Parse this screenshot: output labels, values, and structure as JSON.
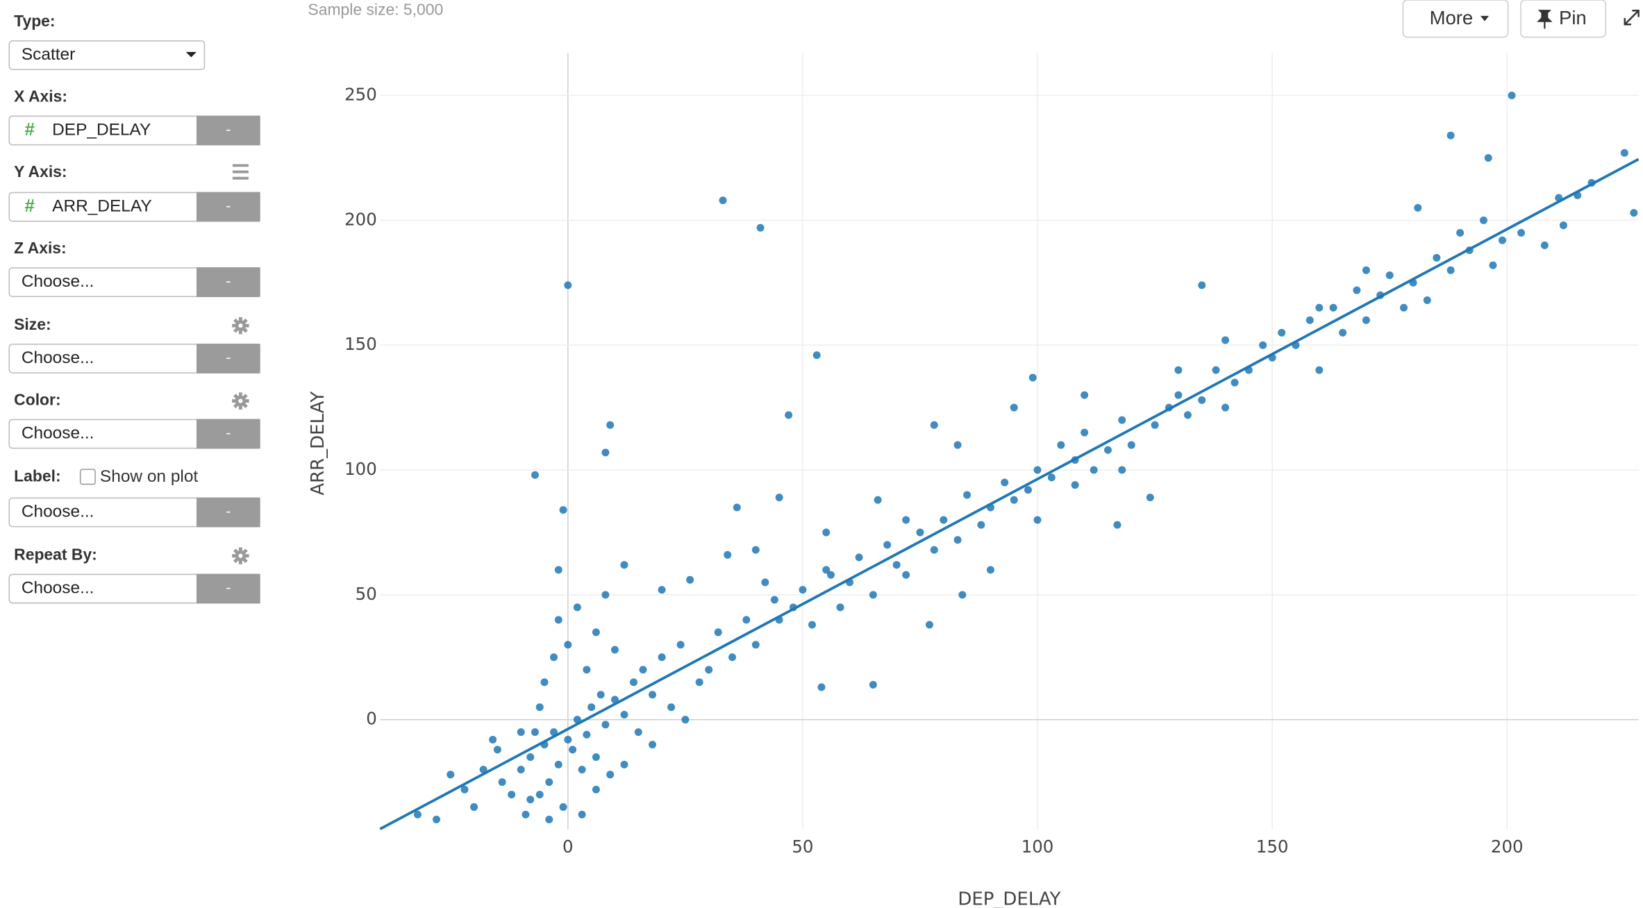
{
  "header": {
    "sample_size": "Sample size: 5,000",
    "more": "More",
    "pin": "Pin"
  },
  "sidebar": {
    "type": {
      "label": "Type:",
      "value": "Scatter"
    },
    "fields": [
      {
        "label": "X Axis:",
        "icon": "#",
        "value": "DEP_DELAY",
        "button": "-"
      },
      {
        "label": "Y Axis:",
        "icon": "#",
        "value": "ARR_DELAY",
        "button": "-"
      },
      {
        "label": "Z Axis:",
        "value": "Choose...",
        "button": "-"
      },
      {
        "label": "Size:",
        "value": "Choose...",
        "button": "-"
      },
      {
        "label": "Color:",
        "value": "Choose...",
        "button": "-"
      },
      {
        "label": "Label:",
        "checkbox": "Show on plot",
        "value": "Choose...",
        "button": "-"
      },
      {
        "label": "Repeat By:",
        "value": "Choose...",
        "button": "-"
      }
    ]
  },
  "chart_data": {
    "type": "scatter",
    "x_label": "DEP_DELAY",
    "y_label": "ARR_DELAY",
    "xlim": [
      -40,
      228
    ],
    "ylim": [
      -44,
      267
    ],
    "xticks": [
      0,
      50,
      100,
      150,
      200
    ],
    "yticks": [
      0,
      50,
      100,
      150,
      200,
      250
    ],
    "grid": true,
    "color": "#1f77b4",
    "x": [
      0,
      33,
      41,
      53,
      47,
      -7,
      9,
      8,
      -1,
      201,
      188,
      196,
      225,
      227,
      211,
      181,
      135,
      124,
      117,
      77,
      65,
      54,
      108,
      -10,
      -8,
      -6,
      -5,
      -4,
      -3,
      -2,
      -1,
      0,
      1,
      2,
      3,
      4,
      5,
      6,
      7,
      8,
      9,
      10,
      12,
      14,
      15,
      16,
      18,
      20,
      22,
      24,
      -12,
      -14,
      -9,
      -7,
      -5,
      -3,
      -2,
      0,
      2,
      4,
      6,
      8,
      10,
      -6,
      -4,
      -8,
      -10,
      -15,
      -18,
      -22,
      -25,
      -28,
      -32,
      -20,
      -16,
      3,
      6,
      12,
      18,
      25,
      28,
      30,
      32,
      35,
      38,
      40,
      42,
      45,
      48,
      50,
      52,
      55,
      58,
      60,
      62,
      65,
      68,
      70,
      72,
      75,
      78,
      80,
      83,
      85,
      88,
      90,
      93,
      95,
      98,
      100,
      103,
      105,
      108,
      110,
      112,
      115,
      118,
      120,
      125,
      128,
      130,
      132,
      135,
      138,
      140,
      142,
      145,
      148,
      150,
      152,
      155,
      158,
      160,
      163,
      165,
      168,
      170,
      173,
      175,
      178,
      180,
      183,
      185,
      188,
      190,
      192,
      195,
      197,
      199,
      203,
      208,
      212,
      215,
      218,
      34,
      44,
      56,
      12,
      20,
      26,
      -2,
      36,
      45,
      66,
      78,
      83,
      95,
      99,
      110,
      130,
      140,
      160,
      170,
      40,
      55,
      72,
      84,
      90,
      100,
      118
    ],
    "values": [
      174,
      208,
      197,
      146,
      122,
      98,
      118,
      107,
      84,
      250,
      234,
      225,
      227,
      203,
      209,
      205,
      174,
      89,
      78,
      38,
      14,
      13,
      94,
      -20,
      -15,
      -30,
      -10,
      -25,
      -5,
      -18,
      -35,
      -8,
      -12,
      0,
      -20,
      -6,
      5,
      -15,
      10,
      -2,
      -22,
      8,
      2,
      15,
      -5,
      20,
      10,
      25,
      5,
      30,
      -30,
      -25,
      -38,
      -5,
      15,
      25,
      40,
      30,
      45,
      20,
      35,
      50,
      28,
      5,
      -40,
      -32,
      -5,
      -12,
      -20,
      -28,
      -22,
      -40,
      -38,
      -35,
      -8,
      -38,
      -28,
      -18,
      -10,
      0,
      15,
      20,
      35,
      25,
      40,
      30,
      55,
      40,
      45,
      52,
      38,
      60,
      45,
      55,
      65,
      50,
      70,
      62,
      58,
      75,
      68,
      80,
      72,
      90,
      78,
      85,
      95,
      88,
      92,
      100,
      97,
      110,
      104,
      115,
      100,
      108,
      120,
      110,
      118,
      125,
      130,
      122,
      128,
      140,
      125,
      135,
      140,
      150,
      145,
      155,
      150,
      160,
      140,
      165,
      155,
      172,
      160,
      170,
      178,
      165,
      175,
      168,
      185,
      180,
      195,
      188,
      200,
      182,
      192,
      195,
      190,
      198,
      210,
      215,
      66,
      48,
      58,
      62,
      52,
      56,
      60,
      85,
      89,
      88,
      118,
      110,
      125,
      137,
      130,
      140,
      152,
      165,
      180,
      68,
      75,
      80,
      50,
      60,
      80,
      100
    ],
    "trendline": {
      "x": [
        -40,
        228
      ],
      "values": [
        -43.8,
        224.5
      ]
    }
  }
}
